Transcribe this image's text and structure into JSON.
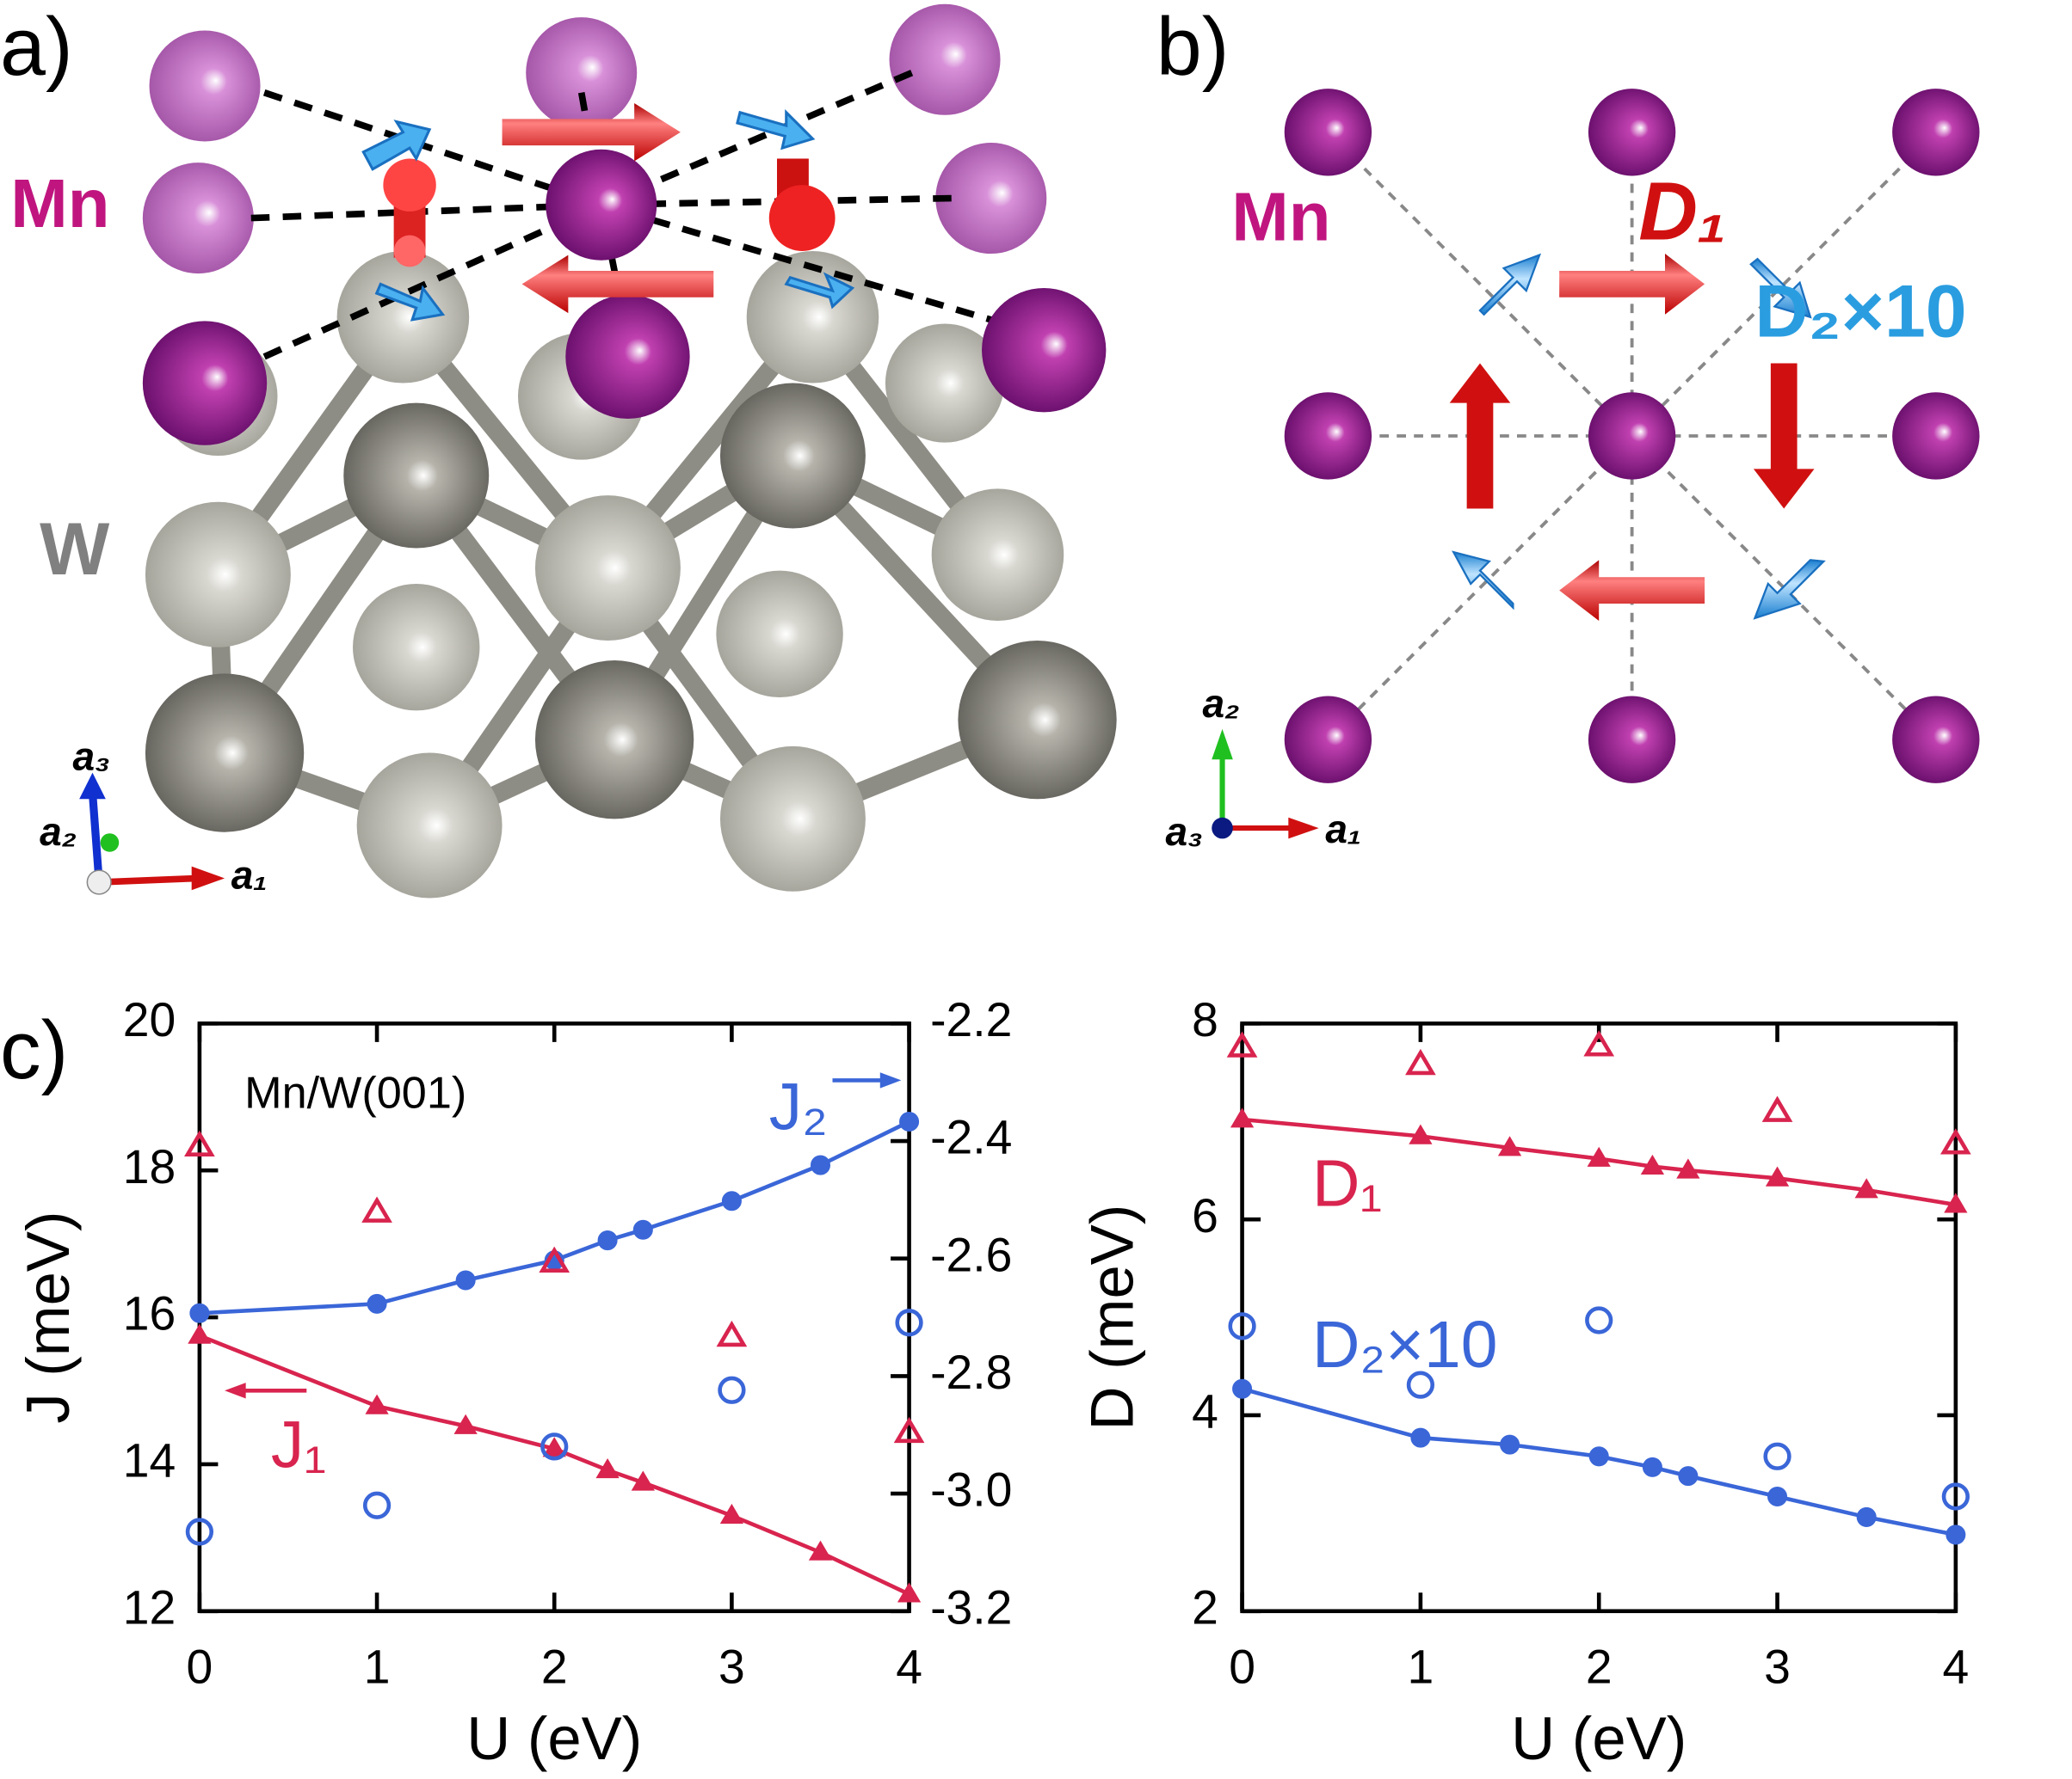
{
  "panels": {
    "a": {
      "label": "a)",
      "mn": "Mn",
      "w": "W",
      "axes": [
        "a₃",
        "a₂",
        "a₁"
      ]
    },
    "b": {
      "label": "b)",
      "mn": "Mn",
      "d1": "D₁",
      "d2": "D₂×10",
      "axes": [
        "a₂",
        "a₃",
        "a₁"
      ]
    },
    "c": {
      "label": "c)"
    }
  },
  "chart_data": [
    {
      "type": "line",
      "annotation": "Mn/W(001)",
      "xlabel": "U (eV)",
      "ylabel": "J (meV)",
      "xlim": [
        0,
        4
      ],
      "xticks": [
        0,
        1,
        2,
        3,
        4
      ],
      "ylim": [
        12,
        20
      ],
      "yticks": [
        12,
        14,
        16,
        18,
        20
      ],
      "y2lim": [
        -3.2,
        -2.2
      ],
      "y2ticks": [
        -3.2,
        {
          "value": -3,
          "label": "-3.0"
        },
        -2.8,
        -2.6,
        -2.4,
        -2.2
      ],
      "series": [
        {
          "name": "J₁",
          "color": "#d8244e",
          "marker": "triangle",
          "filled": true,
          "line": true,
          "x": [
            0,
            1,
            1.5,
            2,
            2.3,
            2.5,
            3,
            3.5,
            4
          ],
          "values": [
            15.75,
            14.79,
            14.52,
            14.21,
            13.92,
            13.75,
            13.3,
            12.8,
            12.23
          ]
        },
        {
          "name": "J₂",
          "color": "#3a66d8",
          "marker": "circle",
          "filled": true,
          "line": true,
          "axis": "y2",
          "x": [
            0,
            1,
            1.5,
            2,
            2.3,
            2.5,
            3,
            3.5,
            4
          ],
          "values": [
            -2.693,
            -2.677,
            -2.637,
            -2.603,
            -2.569,
            -2.551,
            -2.502,
            -2.441,
            -2.367
          ]
        },
        {
          "color": "#d8244e",
          "marker": "triangle",
          "filled": false,
          "line": false,
          "x": [
            0,
            1,
            2,
            3,
            4
          ],
          "values": [
            18.33,
            17.43,
            16.75,
            15.74,
            14.43
          ]
        },
        {
          "color": "#3a66d8",
          "marker": "circle",
          "filled": false,
          "line": false,
          "axis": "y2",
          "x": [
            0,
            1,
            2,
            3,
            4
          ],
          "values": [
            -3.065,
            -3.02,
            -2.92,
            -2.824,
            -2.709
          ]
        }
      ]
    },
    {
      "type": "line",
      "xlabel": "U (eV)",
      "ylabel": "D (meV)",
      "xlim": [
        0,
        4
      ],
      "xticks": [
        0,
        1,
        2,
        3,
        4
      ],
      "ylim": [
        2,
        8
      ],
      "yticks": [
        2,
        4,
        6,
        8
      ],
      "series": [
        {
          "name": "D₁",
          "color": "#d8244e",
          "marker": "triangle",
          "filled": true,
          "line": true,
          "x": [
            0,
            1,
            1.5,
            2,
            2.3,
            2.5,
            3,
            3.5,
            4
          ],
          "values": [
            7.02,
            6.85,
            6.73,
            6.62,
            6.54,
            6.5,
            6.42,
            6.3,
            6.15
          ]
        },
        {
          "name": "D₂×10",
          "color": "#3a66d8",
          "marker": "circle",
          "filled": true,
          "line": true,
          "x": [
            0,
            1,
            1.5,
            2,
            2.3,
            2.5,
            3,
            3.5,
            4
          ],
          "values": [
            4.27,
            3.77,
            3.7,
            3.58,
            3.47,
            3.38,
            3.17,
            2.96,
            2.78
          ]
        },
        {
          "color": "#d8244e",
          "marker": "triangle",
          "filled": false,
          "line": false,
          "x": [
            0,
            1,
            2,
            3,
            4
          ],
          "values": [
            7.76,
            7.58,
            7.77,
            7.1,
            6.77
          ]
        },
        {
          "color": "#3a66d8",
          "marker": "circle",
          "filled": false,
          "line": false,
          "x": [
            0,
            1,
            2,
            3,
            4
          ],
          "values": [
            4.91,
            4.31,
            4.97,
            3.58,
            3.17
          ]
        }
      ]
    }
  ]
}
